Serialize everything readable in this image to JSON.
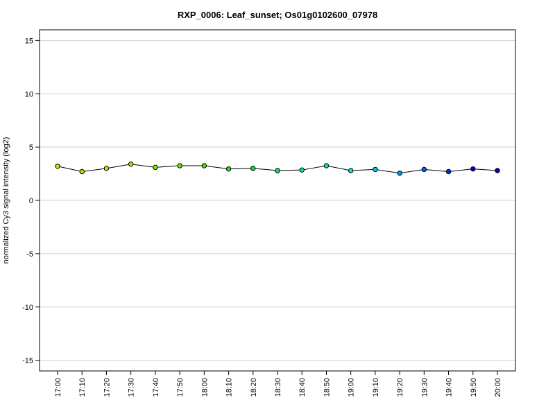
{
  "chart_data": {
    "type": "line",
    "title": "RXP_0006: Leaf_sunset; Os01g0102600_07978",
    "xlabel": "",
    "ylabel": "normalized Cy3 signal intensity (log2)",
    "ylim": [
      -16,
      16
    ],
    "y_ticks": [
      15,
      10,
      5,
      0,
      -5,
      -10,
      -15
    ],
    "y_tick_labels": [
      "15",
      "10",
      "5",
      "0",
      "-5",
      "-10",
      "-15"
    ],
    "grid": "horizontal",
    "categories": [
      "17:00",
      "17:10",
      "17:20",
      "17:30",
      "17:40",
      "17:50",
      "18:00",
      "18:10",
      "18:20",
      "18:30",
      "18:40",
      "18:50",
      "19:00",
      "19:10",
      "19:20",
      "19:30",
      "19:40",
      "19:50",
      "20:00"
    ],
    "series": [
      {
        "values": [
          3.2,
          2.7,
          3.0,
          3.4,
          3.1,
          3.25,
          3.25,
          2.95,
          3.0,
          2.8,
          2.85,
          3.25,
          2.8,
          2.9,
          2.55,
          2.9,
          2.7,
          2.95,
          2.8
        ],
        "line_color": "#000000",
        "point_colors": [
          "#d9d900",
          "#d9d900",
          "#c8e600",
          "#aae600",
          "#88e600",
          "#66e600",
          "#44e600",
          "#22e622",
          "#00e644",
          "#00e666",
          "#00e69a",
          "#00e6c8",
          "#00e6e6",
          "#00c8e6",
          "#0096e6",
          "#0064e6",
          "#0032e6",
          "#0000e6",
          "#0000c8"
        ]
      }
    ]
  }
}
